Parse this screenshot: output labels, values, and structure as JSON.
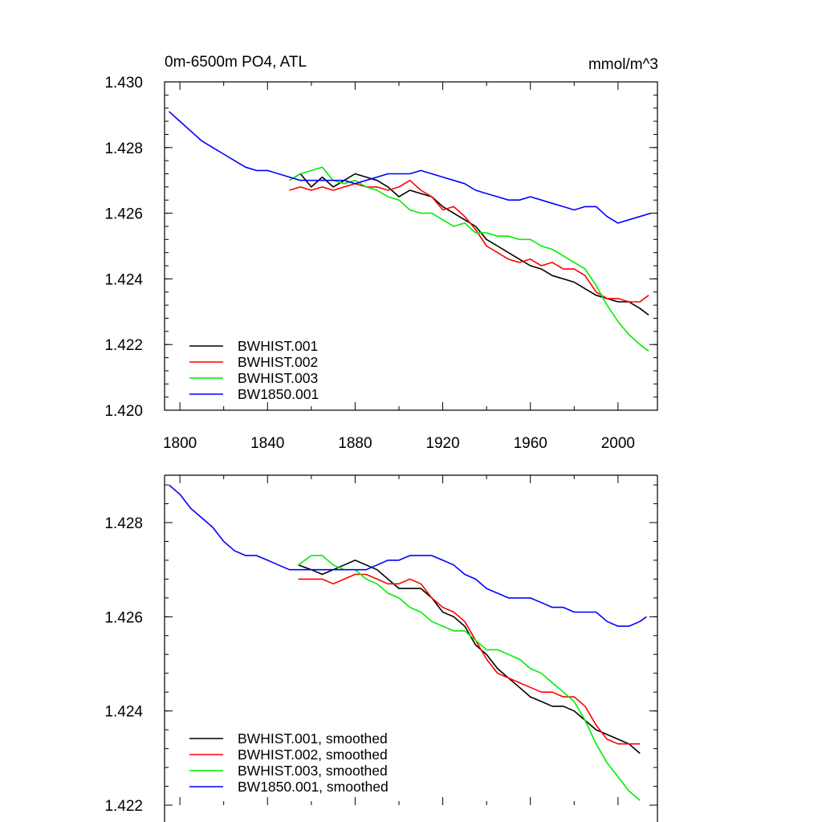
{
  "colors": {
    "BWHIST.001": "#000000",
    "BWHIST.002": "#ff0000",
    "BWHIST.003": "#00ee00",
    "BW1850.001": "#0000ff"
  },
  "top": {
    "title_left": "0m-6500m PO4, ATL",
    "title_right": "mmol/m^3",
    "xlim": [
      1793,
      2018
    ],
    "ylim": [
      1.42,
      1.43
    ],
    "yticks": [
      "1.420",
      "1.422",
      "1.424",
      "1.426",
      "1.428",
      "1.430"
    ],
    "xticks": [
      "1800",
      "1840",
      "1880",
      "1920",
      "1960",
      "2000"
    ],
    "legend": [
      "BWHIST.001",
      "BWHIST.002",
      "BWHIST.003",
      "BW1850.001"
    ]
  },
  "bottom": {
    "xlim": [
      1793,
      2018
    ],
    "ylim": [
      1.422,
      1.429
    ],
    "yticks": [
      "1.422",
      "1.424",
      "1.426",
      "1.428"
    ],
    "legend": [
      "BWHIST.001, smoothed",
      "BWHIST.002, smoothed",
      "BWHIST.003, smoothed",
      "BW1850.001, smoothed"
    ]
  },
  "chart_data": [
    {
      "type": "line",
      "title": "0m-6500m PO4, ATL",
      "units": "mmol/m^3",
      "ylim": [
        1.42,
        1.43
      ],
      "xlim": [
        1793,
        2018
      ],
      "series": [
        {
          "name": "BWHIST.001",
          "x": [
            1850,
            1855,
            1860,
            1865,
            1870,
            1875,
            1880,
            1885,
            1890,
            1895,
            1900,
            1905,
            1910,
            1915,
            1920,
            1925,
            1930,
            1935,
            1940,
            1945,
            1950,
            1955,
            1960,
            1965,
            1970,
            1975,
            1980,
            1985,
            1990,
            1995,
            2000,
            2005,
            2010,
            2014
          ],
          "y": [
            1.427,
            1.4272,
            1.4268,
            1.4271,
            1.4268,
            1.427,
            1.4272,
            1.4271,
            1.427,
            1.4268,
            1.4265,
            1.4267,
            1.4266,
            1.4265,
            1.4262,
            1.426,
            1.4258,
            1.4256,
            1.4252,
            1.425,
            1.4248,
            1.4246,
            1.4244,
            1.4243,
            1.4241,
            1.424,
            1.4239,
            1.4237,
            1.4235,
            1.4234,
            1.4233,
            1.4233,
            1.4231,
            1.4229
          ]
        },
        {
          "name": "BWHIST.002",
          "x": [
            1850,
            1855,
            1860,
            1865,
            1870,
            1875,
            1880,
            1885,
            1890,
            1895,
            1900,
            1905,
            1910,
            1915,
            1920,
            1925,
            1930,
            1935,
            1940,
            1945,
            1950,
            1955,
            1960,
            1965,
            1970,
            1975,
            1980,
            1985,
            1990,
            1995,
            2000,
            2005,
            2010,
            2014
          ],
          "y": [
            1.4267,
            1.4268,
            1.4267,
            1.4268,
            1.4267,
            1.4268,
            1.4269,
            1.4268,
            1.4268,
            1.4267,
            1.4268,
            1.427,
            1.4267,
            1.4265,
            1.4261,
            1.4262,
            1.4259,
            1.4255,
            1.425,
            1.4248,
            1.4246,
            1.4245,
            1.4246,
            1.4244,
            1.4245,
            1.4243,
            1.4243,
            1.4241,
            1.4236,
            1.4234,
            1.4234,
            1.4233,
            1.4233,
            1.4235
          ]
        },
        {
          "name": "BWHIST.003",
          "x": [
            1850,
            1855,
            1860,
            1865,
            1870,
            1875,
            1880,
            1885,
            1890,
            1895,
            1900,
            1905,
            1910,
            1915,
            1920,
            1925,
            1930,
            1935,
            1940,
            1945,
            1950,
            1955,
            1960,
            1965,
            1970,
            1975,
            1980,
            1985,
            1990,
            1995,
            2000,
            2005,
            2010,
            2014
          ],
          "y": [
            1.427,
            1.4272,
            1.4273,
            1.4274,
            1.427,
            1.4269,
            1.427,
            1.4268,
            1.4267,
            1.4265,
            1.4264,
            1.4261,
            1.426,
            1.426,
            1.4258,
            1.4256,
            1.4257,
            1.4254,
            1.4254,
            1.4253,
            1.4253,
            1.4252,
            1.4252,
            1.425,
            1.4249,
            1.4247,
            1.4245,
            1.4243,
            1.4238,
            1.4232,
            1.4227,
            1.4223,
            1.422,
            1.4218
          ]
        },
        {
          "name": "BW1850.001",
          "x": [
            1795,
            1800,
            1805,
            1810,
            1815,
            1820,
            1825,
            1830,
            1835,
            1840,
            1845,
            1850,
            1855,
            1860,
            1865,
            1870,
            1875,
            1880,
            1885,
            1890,
            1895,
            1900,
            1905,
            1910,
            1915,
            1920,
            1925,
            1930,
            1935,
            1940,
            1945,
            1950,
            1955,
            1960,
            1965,
            1970,
            1975,
            1980,
            1985,
            1990,
            1995,
            2000,
            2005,
            2010,
            2015
          ],
          "y": [
            1.4291,
            1.4288,
            1.4285,
            1.4282,
            1.428,
            1.4278,
            1.4276,
            1.4274,
            1.4273,
            1.4273,
            1.4272,
            1.4271,
            1.427,
            1.427,
            1.427,
            1.427,
            1.427,
            1.4269,
            1.427,
            1.4271,
            1.4272,
            1.4272,
            1.4272,
            1.4273,
            1.4272,
            1.4271,
            1.427,
            1.4269,
            1.4267,
            1.4266,
            1.4265,
            1.4264,
            1.4264,
            1.4265,
            1.4264,
            1.4263,
            1.4262,
            1.4261,
            1.4262,
            1.4262,
            1.4259,
            1.4257,
            1.4258,
            1.4259,
            1.426
          ]
        }
      ]
    },
    {
      "type": "line",
      "ylim": [
        1.422,
        1.429
      ],
      "xlim": [
        1793,
        2018
      ],
      "series": [
        {
          "name": "BWHIST.001, smoothed",
          "x": [
            1854,
            1860,
            1865,
            1870,
            1875,
            1880,
            1885,
            1890,
            1895,
            1900,
            1905,
            1910,
            1915,
            1920,
            1925,
            1930,
            1935,
            1940,
            1945,
            1950,
            1955,
            1960,
            1965,
            1970,
            1975,
            1980,
            1985,
            1990,
            1995,
            2000,
            2005,
            2010
          ],
          "y": [
            1.4271,
            1.427,
            1.4269,
            1.427,
            1.4271,
            1.4272,
            1.4271,
            1.427,
            1.4268,
            1.4266,
            1.4266,
            1.4266,
            1.4264,
            1.4261,
            1.426,
            1.4258,
            1.4254,
            1.4252,
            1.4249,
            1.4247,
            1.4245,
            1.4243,
            1.4242,
            1.4241,
            1.4241,
            1.424,
            1.4238,
            1.4236,
            1.4235,
            1.4234,
            1.4233,
            1.4231
          ]
        },
        {
          "name": "BWHIST.002, smoothed",
          "x": [
            1854,
            1860,
            1865,
            1870,
            1875,
            1880,
            1885,
            1890,
            1895,
            1900,
            1905,
            1910,
            1915,
            1920,
            1925,
            1930,
            1935,
            1940,
            1945,
            1950,
            1955,
            1960,
            1965,
            1970,
            1975,
            1980,
            1985,
            1990,
            1995,
            2000,
            2005,
            2010
          ],
          "y": [
            1.4268,
            1.4268,
            1.4268,
            1.4267,
            1.4268,
            1.4269,
            1.4269,
            1.4268,
            1.4267,
            1.4267,
            1.4268,
            1.4267,
            1.4264,
            1.4262,
            1.4261,
            1.4259,
            1.4255,
            1.4251,
            1.4248,
            1.4247,
            1.4246,
            1.4245,
            1.4244,
            1.4244,
            1.4243,
            1.4243,
            1.4241,
            1.4237,
            1.4234,
            1.4233,
            1.4233,
            1.4233
          ]
        },
        {
          "name": "BWHIST.003, smoothed",
          "x": [
            1854,
            1860,
            1865,
            1870,
            1875,
            1880,
            1885,
            1890,
            1895,
            1900,
            1905,
            1910,
            1915,
            1920,
            1925,
            1930,
            1935,
            1940,
            1945,
            1950,
            1955,
            1960,
            1965,
            1970,
            1975,
            1980,
            1985,
            1990,
            1995,
            2000,
            2005,
            2010
          ],
          "y": [
            1.4271,
            1.4273,
            1.4273,
            1.4271,
            1.427,
            1.427,
            1.4268,
            1.4267,
            1.4265,
            1.4264,
            1.4262,
            1.4261,
            1.4259,
            1.4258,
            1.4257,
            1.4257,
            1.4255,
            1.4253,
            1.4253,
            1.4252,
            1.4251,
            1.4249,
            1.4248,
            1.4246,
            1.4244,
            1.4242,
            1.4238,
            1.4233,
            1.4229,
            1.4226,
            1.4223,
            1.4221
          ]
        },
        {
          "name": "BW1850.001, smoothed",
          "x": [
            1795,
            1800,
            1805,
            1810,
            1815,
            1820,
            1825,
            1830,
            1835,
            1840,
            1845,
            1850,
            1855,
            1860,
            1865,
            1870,
            1875,
            1880,
            1885,
            1890,
            1895,
            1900,
            1905,
            1910,
            1915,
            1920,
            1925,
            1930,
            1935,
            1940,
            1945,
            1950,
            1955,
            1960,
            1965,
            1970,
            1975,
            1980,
            1985,
            1990,
            1995,
            2000,
            2005,
            2010,
            2013
          ],
          "y": [
            1.4288,
            1.4286,
            1.4283,
            1.4281,
            1.4279,
            1.4276,
            1.4274,
            1.4273,
            1.4273,
            1.4272,
            1.4271,
            1.427,
            1.427,
            1.427,
            1.427,
            1.427,
            1.427,
            1.427,
            1.427,
            1.4271,
            1.4272,
            1.4272,
            1.4273,
            1.4273,
            1.4273,
            1.4272,
            1.4271,
            1.4269,
            1.4268,
            1.4266,
            1.4265,
            1.4264,
            1.4264,
            1.4264,
            1.4263,
            1.4262,
            1.4262,
            1.4261,
            1.4261,
            1.4261,
            1.4259,
            1.4258,
            1.4258,
            1.4259,
            1.426
          ]
        }
      ]
    }
  ]
}
